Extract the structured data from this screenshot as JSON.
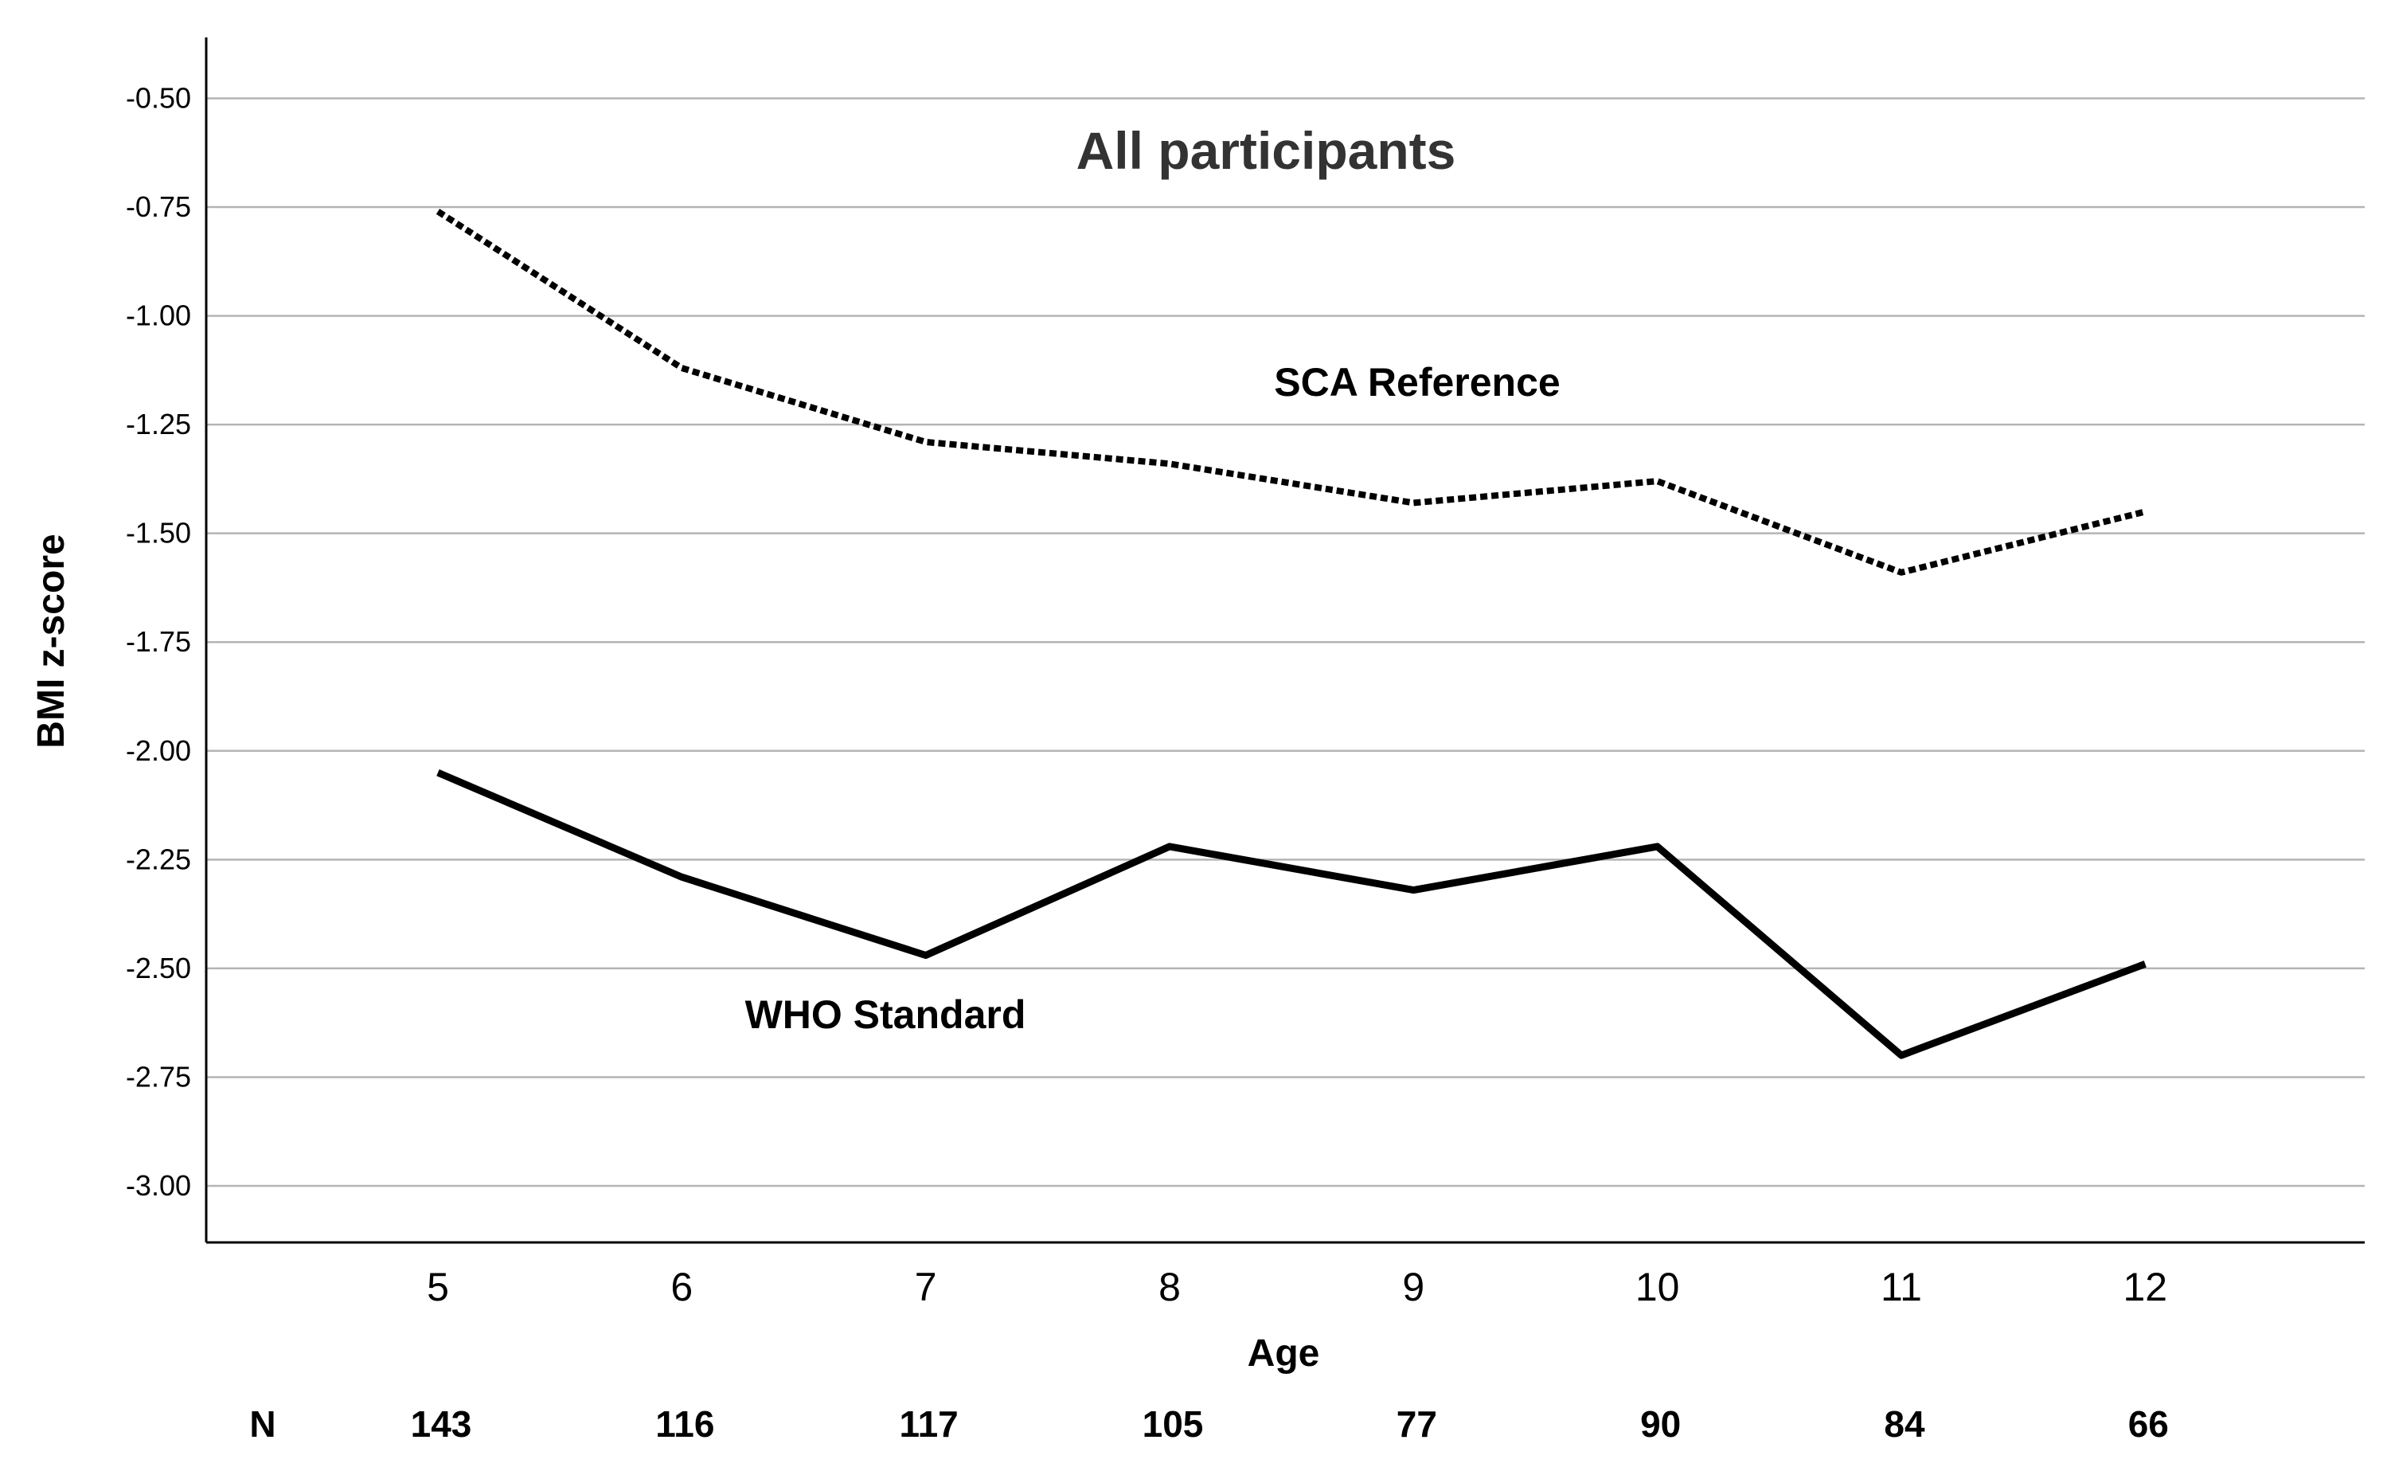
{
  "chart_data": {
    "type": "line",
    "title": "All participants",
    "xlabel": "Age",
    "ylabel": "BMI z-score",
    "x": [
      5,
      6,
      7,
      8,
      9,
      10,
      11,
      12
    ],
    "x_tick_labels": [
      "5",
      "6",
      "7",
      "8",
      "9",
      "10",
      "11",
      "12"
    ],
    "y_ticks": [
      -0.5,
      -0.75,
      -1.0,
      -1.25,
      -1.5,
      -1.75,
      -2.0,
      -2.25,
      -2.5,
      -2.75,
      -3.0
    ],
    "y_tick_labels": [
      "-0.50",
      "-0.75",
      "-1.00",
      "-1.25",
      "-1.50",
      "-1.75",
      "-2.00",
      "-2.25",
      "-2.50",
      "-2.75",
      "-3.00"
    ],
    "ylim": [
      -3.13,
      -0.36
    ],
    "xlim": [
      4.05,
      12.9
    ],
    "grid": "horizontal",
    "series": [
      {
        "name": "SCA Reference",
        "style": "dotted",
        "values": [
          -0.76,
          -1.12,
          -1.29,
          -1.34,
          -1.43,
          -1.38,
          -1.59,
          -1.45
        ]
      },
      {
        "name": "WHO Standard",
        "style": "solid",
        "values": [
          -2.05,
          -2.29,
          -2.47,
          -2.22,
          -2.32,
          -2.22,
          -2.7,
          -2.49
        ]
      }
    ],
    "n_label": "N",
    "n_values": [
      "143",
      "116",
      "117",
      "105",
      "77",
      "90",
      "84",
      "66"
    ]
  }
}
